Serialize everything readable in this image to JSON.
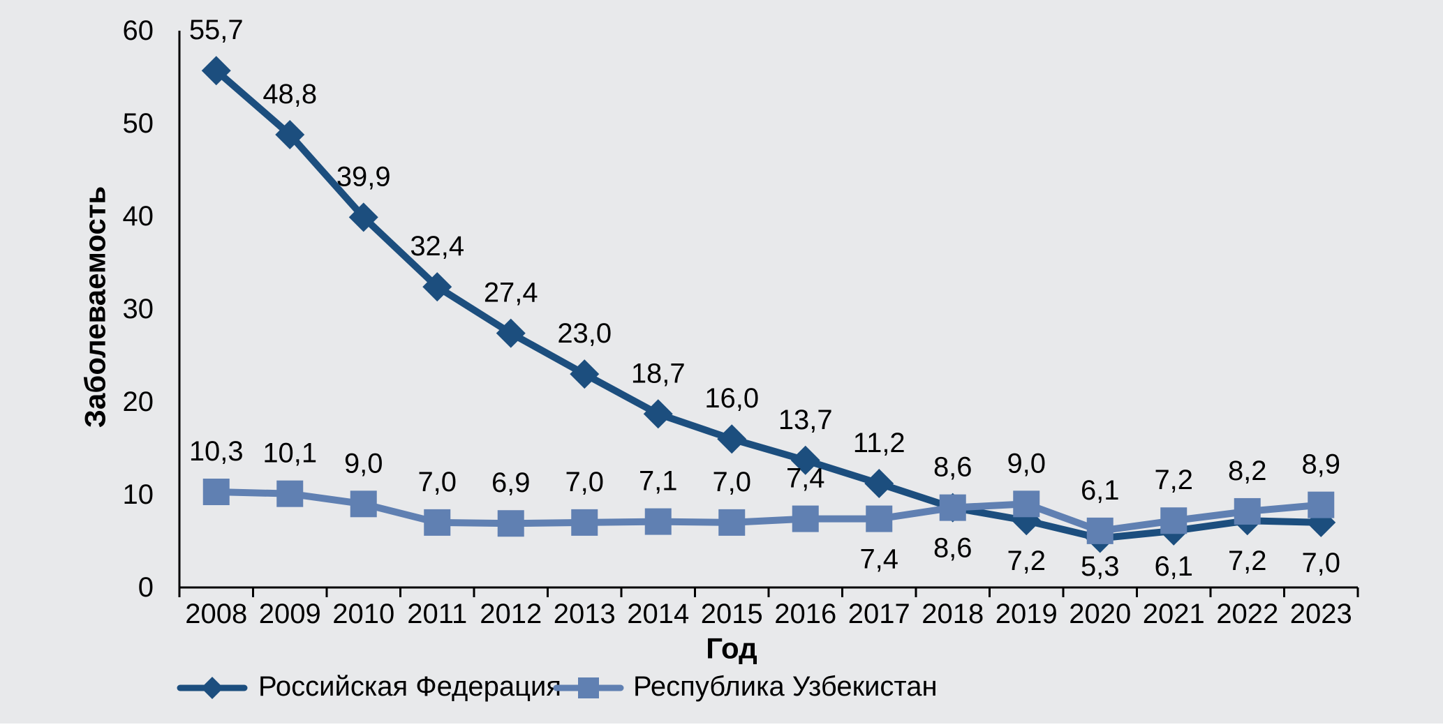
{
  "figure": {
    "background": "#E8E9EB",
    "axis_color": "#000000",
    "text_color": "#000000"
  },
  "chart_data": {
    "type": "line",
    "title": "",
    "xlabel": "Год",
    "ylabel": "Заболеваемость",
    "ylim": [
      0,
      60
    ],
    "yticks": [
      0,
      10,
      20,
      30,
      40,
      50,
      60
    ],
    "ytick_labels": [
      "0",
      "10",
      "20",
      "30",
      "40",
      "50",
      "60"
    ],
    "grid": false,
    "legend_position": "bottom",
    "categories": [
      "2008",
      "2009",
      "2010",
      "2011",
      "2012",
      "2013",
      "2014",
      "2015",
      "2016",
      "2017",
      "2018",
      "2019",
      "2020",
      "2021",
      "2022",
      "2023"
    ],
    "series": [
      {
        "name": "Российская Федерация",
        "color": "#1C4E7E",
        "marker": "diamond",
        "values": [
          55.7,
          48.8,
          39.9,
          32.4,
          27.4,
          23.0,
          18.7,
          16.0,
          13.7,
          11.2,
          8.6,
          7.2,
          5.3,
          6.1,
          7.2,
          7.0
        ],
        "labels": [
          "55,7",
          "48,8",
          "39,9",
          "32,4",
          "27,4",
          "23,0",
          "18,7",
          "16,0",
          "13,7",
          "11,2",
          "8,6",
          "7,2",
          "5,3",
          "6,1",
          "7,2",
          "7,0"
        ],
        "label_positions": [
          "above",
          "above",
          "above",
          "above",
          "above",
          "above",
          "above",
          "above",
          "above",
          "above",
          "above",
          "below",
          "below",
          "below",
          "below",
          "below"
        ]
      },
      {
        "name": "Республика Узбекистан",
        "color": "#6080B2",
        "marker": "square",
        "values": [
          10.3,
          10.1,
          9.0,
          7.0,
          6.9,
          7.0,
          7.1,
          7.0,
          7.4,
          7.4,
          8.6,
          9.0,
          6.1,
          7.2,
          8.2,
          8.9
        ],
        "labels": [
          "10,3",
          "10,1",
          "9,0",
          "7,0",
          "6,9",
          "7,0",
          "7,1",
          "7,0",
          "7,4",
          "7,4",
          "8,6",
          "9,0",
          "6,1",
          "7,2",
          "8,2",
          "8,9"
        ],
        "label_positions": [
          "above",
          "above",
          "above",
          "above",
          "above",
          "above",
          "above",
          "above",
          "above",
          "below",
          "below",
          "above",
          "above",
          "above",
          "above",
          "above"
        ]
      }
    ]
  }
}
